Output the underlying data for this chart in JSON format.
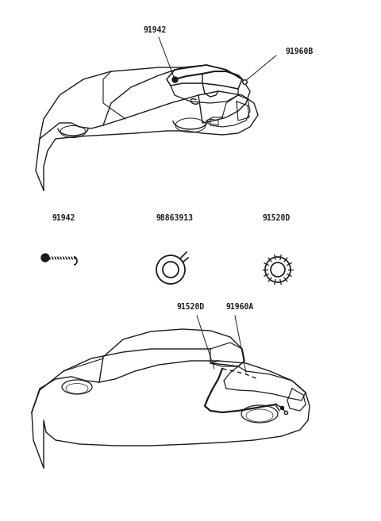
{
  "background_color": "#ffffff",
  "line_color": "#1a1a1a",
  "figsize": [
    4.8,
    6.57
  ],
  "dpi": 100,
  "labels": {
    "top_label1": "91942",
    "top_label2": "91960B",
    "mid_left": "91942",
    "mid_center1": "98863913",
    "mid_center2": "91520D",
    "bottom_label1": "91520D",
    "bottom_label2": "91960A"
  }
}
